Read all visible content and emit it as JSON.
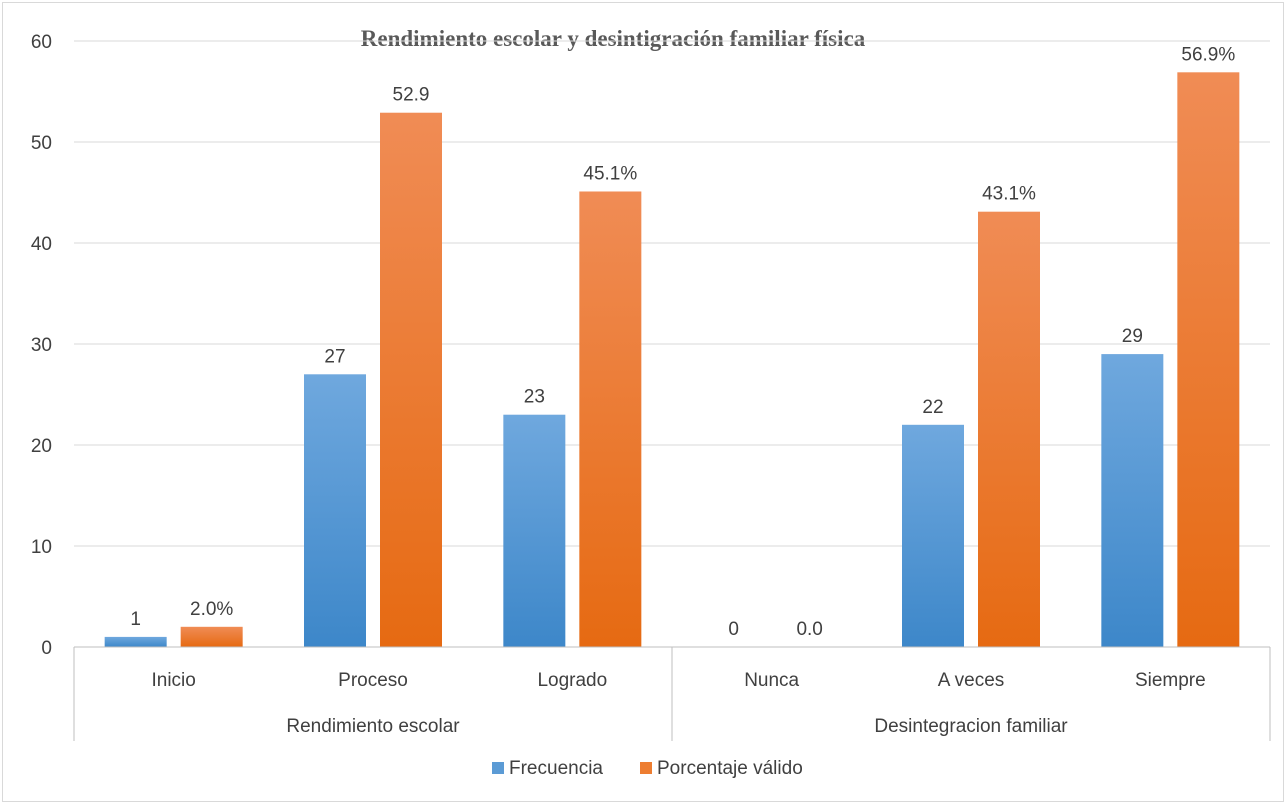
{
  "chart_data": {
    "type": "bar",
    "title": "Rendimiento   escolar y desintigración familiar  física",
    "ylim": [
      0,
      60
    ],
    "yticks": [
      "0",
      "10",
      "20",
      "30",
      "40",
      "50",
      "60"
    ],
    "grid": true,
    "legend_position": "bottom",
    "categories": [
      "Inicio",
      "Proceso",
      "Logrado",
      "Nunca",
      "A veces",
      "Siempre"
    ],
    "groups": [
      {
        "label": "Rendimiento escolar",
        "categories": [
          "Inicio",
          "Proceso",
          "Logrado"
        ]
      },
      {
        "label": "Desintegracion familiar",
        "categories": [
          "Nunca",
          "A veces",
          "Siempre"
        ]
      }
    ],
    "series": [
      {
        "name": "Frecuencia",
        "color": "#5b9bd5",
        "values": [
          1,
          27,
          23,
          0,
          22,
          29
        ],
        "labels": [
          "1",
          "27",
          "23",
          "0",
          "22",
          "29"
        ]
      },
      {
        "name": "Porcentaje válido",
        "color": "#ed7d31",
        "values": [
          2.0,
          52.9,
          45.1,
          0.0,
          43.1,
          56.9
        ],
        "labels": [
          "2.0%",
          "52.9",
          "45.1%",
          "0.0",
          "43.1%",
          "56.9%"
        ]
      }
    ]
  }
}
